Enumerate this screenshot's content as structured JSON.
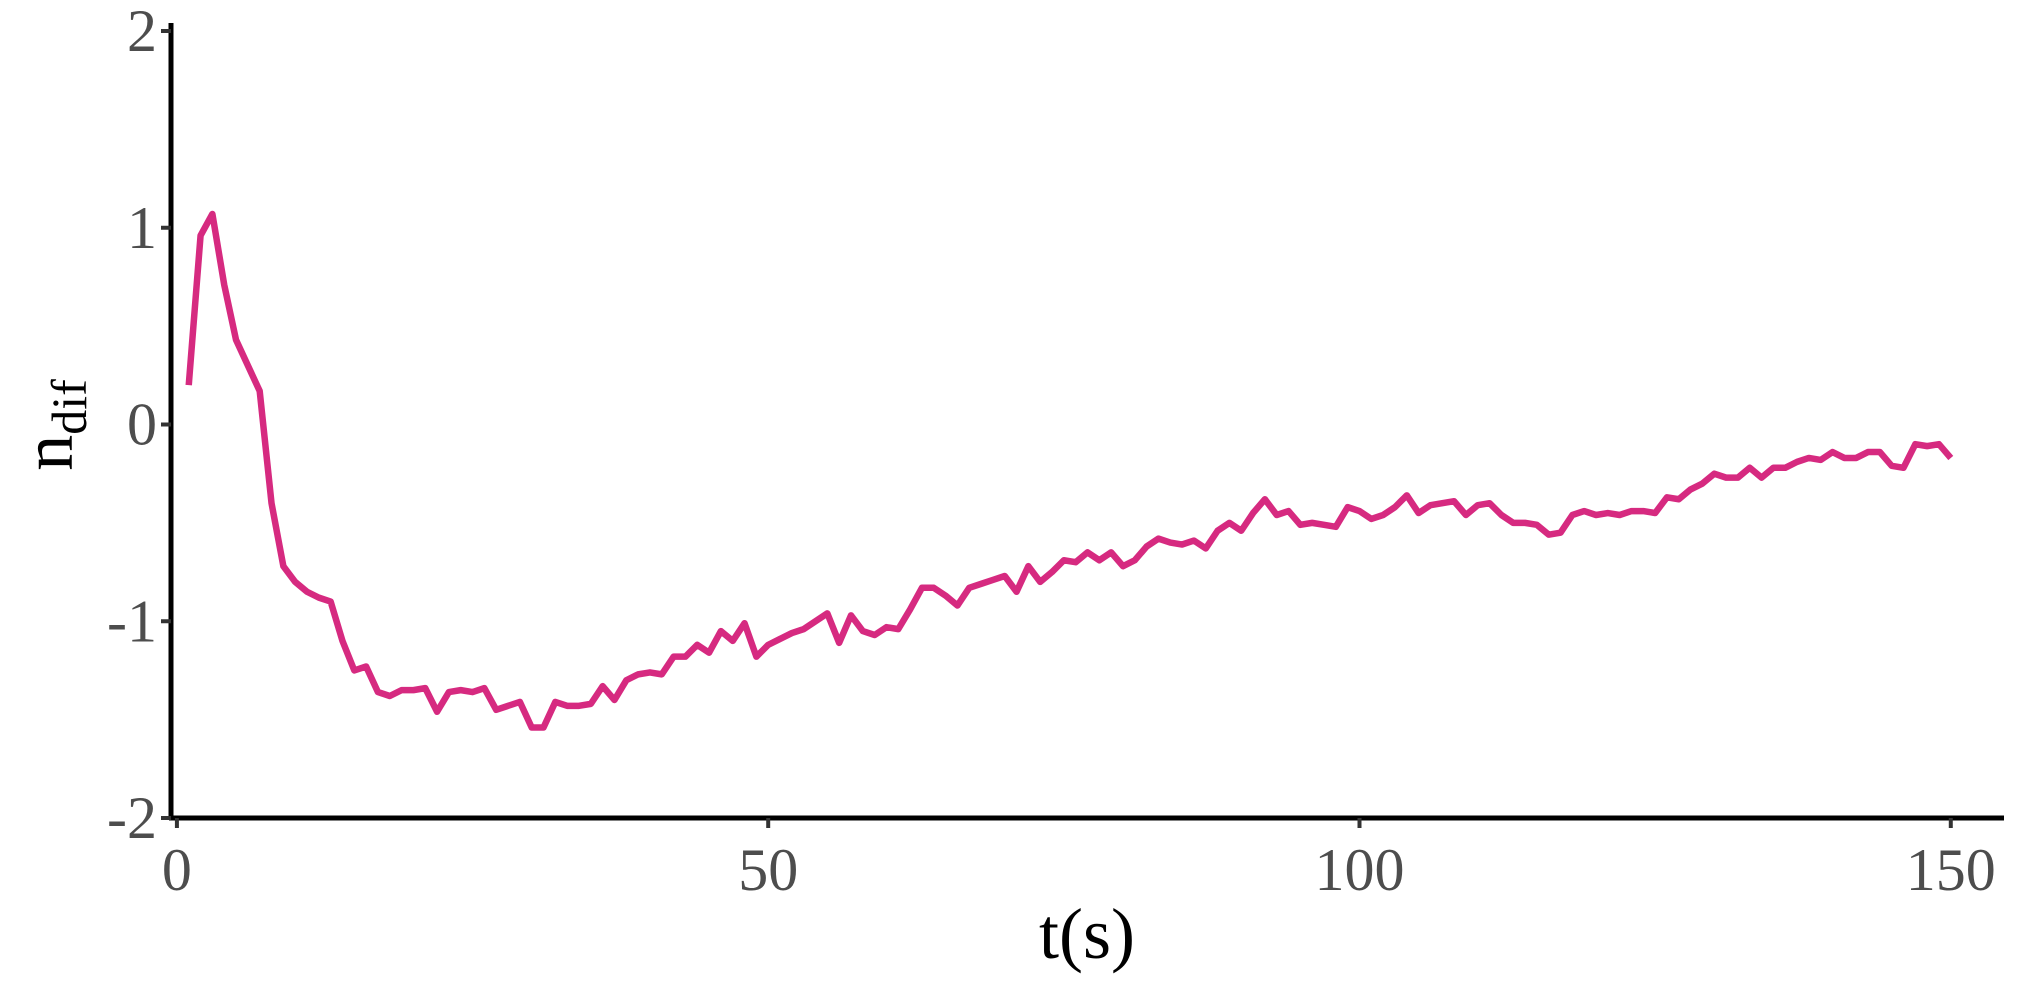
{
  "chart_data": {
    "type": "line",
    "xlabel": "t(s)",
    "ylabel": "n",
    "ylabel_subscript": "dif",
    "color": "#d62a80",
    "x": [
      1,
      2,
      3,
      4,
      5,
      6,
      7,
      8,
      9,
      10,
      11,
      12,
      13,
      14,
      15,
      16,
      17,
      18,
      19,
      20,
      21,
      22,
      23,
      24,
      25,
      26,
      27,
      28,
      29,
      30,
      31,
      32,
      33,
      34,
      35,
      36,
      37,
      38,
      39,
      40,
      41,
      42,
      43,
      44,
      45,
      46,
      47,
      48,
      49,
      50,
      51,
      52,
      53,
      54,
      55,
      56,
      57,
      58,
      59,
      60,
      61,
      62,
      63,
      64,
      65,
      66,
      67,
      68,
      69,
      70,
      71,
      72,
      73,
      74,
      75,
      76,
      77,
      78,
      79,
      80,
      81,
      82,
      83,
      84,
      85,
      86,
      87,
      88,
      89,
      90,
      91,
      92,
      93,
      94,
      95,
      96,
      97,
      98,
      99,
      100,
      101,
      102,
      103,
      104,
      105,
      106,
      107,
      108,
      109,
      110,
      111,
      112,
      113,
      114,
      115,
      116,
      117,
      118,
      119,
      120,
      121,
      122,
      123,
      124,
      125,
      126,
      127,
      128,
      129,
      130,
      131,
      132,
      133,
      134,
      135,
      136,
      137,
      138,
      139,
      140,
      141,
      142,
      143,
      144,
      145,
      146,
      147,
      148,
      149,
      150
    ],
    "values": [
      0.2,
      0.96,
      1.07,
      0.71,
      0.43,
      0.3,
      0.17,
      -0.4,
      -0.72,
      -0.8,
      -0.85,
      -0.88,
      -0.9,
      -1.1,
      -1.25,
      -1.23,
      -1.36,
      -1.38,
      -1.35,
      -1.35,
      -1.34,
      -1.46,
      -1.36,
      -1.35,
      -1.36,
      -1.34,
      -1.45,
      -1.43,
      -1.41,
      -1.54,
      -1.54,
      -1.41,
      -1.43,
      -1.43,
      -1.42,
      -1.33,
      -1.4,
      -1.3,
      -1.27,
      -1.26,
      -1.27,
      -1.18,
      -1.18,
      -1.12,
      -1.16,
      -1.05,
      -1.1,
      -1.01,
      -1.18,
      -1.12,
      -1.09,
      -1.06,
      -1.04,
      -1.0,
      -0.96,
      -1.11,
      -0.97,
      -1.05,
      -1.07,
      -1.03,
      -1.04,
      -0.94,
      -0.83,
      -0.83,
      -0.87,
      -0.92,
      -0.83,
      -0.81,
      -0.79,
      -0.77,
      -0.85,
      -0.72,
      -0.8,
      -0.75,
      -0.69,
      -0.7,
      -0.65,
      -0.69,
      -0.65,
      -0.72,
      -0.69,
      -0.62,
      -0.58,
      -0.6,
      -0.61,
      -0.59,
      -0.63,
      -0.54,
      -0.5,
      -0.54,
      -0.45,
      -0.38,
      -0.46,
      -0.44,
      -0.51,
      -0.5,
      -0.51,
      -0.52,
      -0.42,
      -0.44,
      -0.48,
      -0.46,
      -0.42,
      -0.36,
      -0.45,
      -0.41,
      -0.4,
      -0.39,
      -0.46,
      -0.41,
      -0.4,
      -0.46,
      -0.5,
      -0.5,
      -0.51,
      -0.56,
      -0.55,
      -0.46,
      -0.44,
      -0.46,
      -0.45,
      -0.46,
      -0.44,
      -0.44,
      -0.45,
      -0.37,
      -0.38,
      -0.33,
      -0.3,
      -0.25,
      -0.27,
      -0.27,
      -0.22,
      -0.27,
      -0.22,
      -0.22,
      -0.19,
      -0.17,
      -0.18,
      -0.14,
      -0.17,
      -0.17,
      -0.14,
      -0.14,
      -0.21,
      -0.22,
      -0.1,
      -0.11,
      -0.1,
      -0.17
    ],
    "xlim": [
      -0.5,
      154.5
    ],
    "ylim": [
      -2,
      2
    ],
    "xticks": [
      0,
      50,
      100,
      150
    ],
    "yticks": [
      -2,
      -1,
      0,
      1,
      2
    ]
  }
}
